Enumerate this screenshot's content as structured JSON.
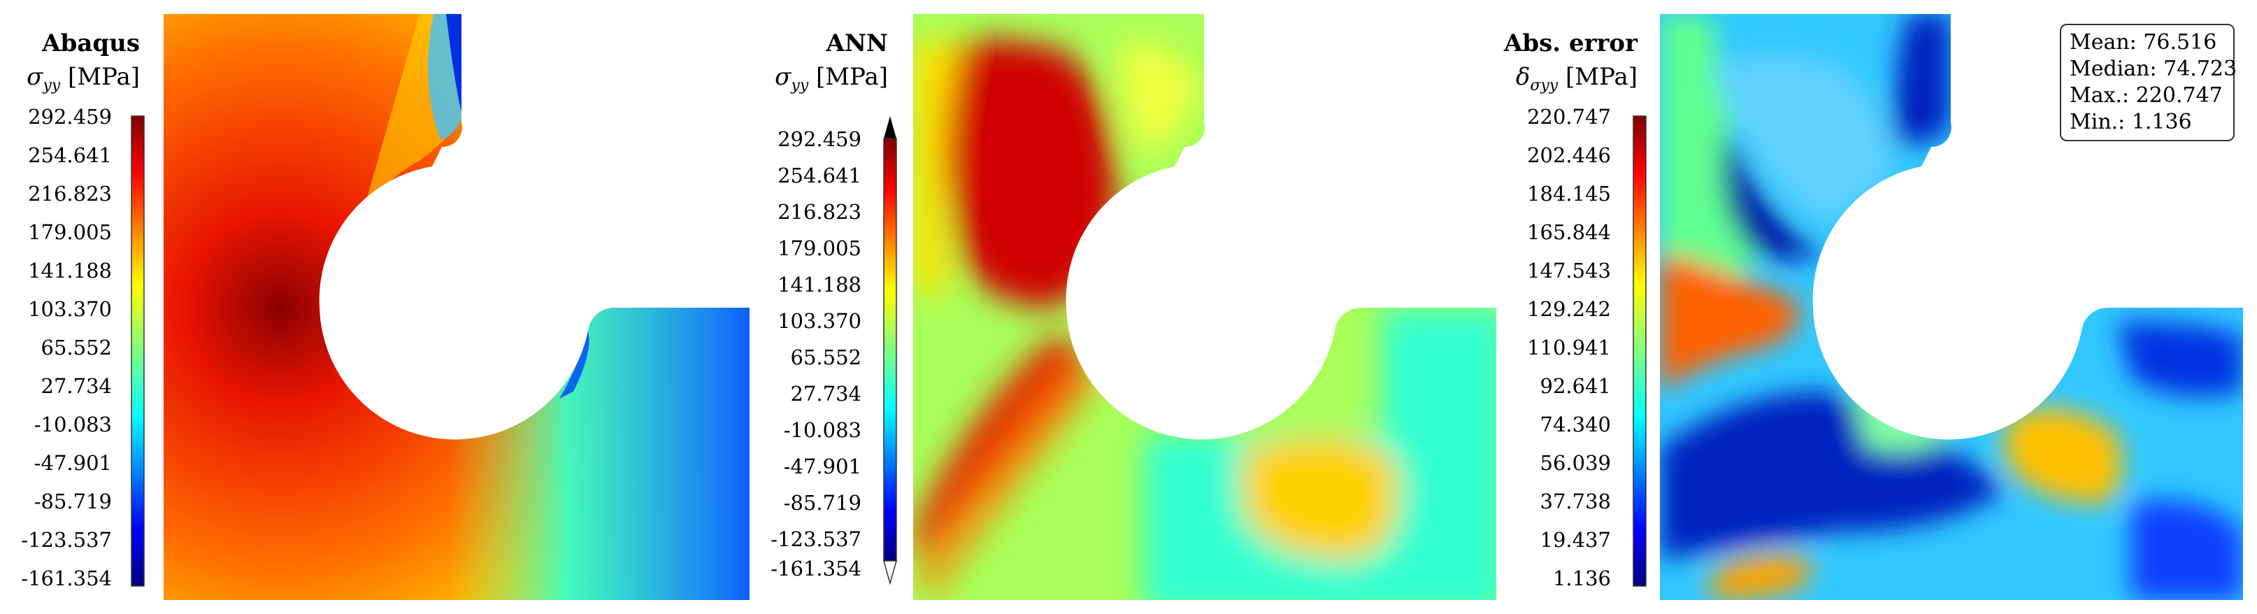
{
  "panels": [
    {
      "id": "abaqus",
      "title": "Abaqus",
      "quantity_label": "σyy [MPa]",
      "quantity_symbol": "σ",
      "quantity_subscript": "yy",
      "unit": "[MPa]",
      "colorbar_ticks": [
        "292.459",
        "254.641",
        "216.823",
        "179.005",
        "141.188",
        "103.370",
        "65.552",
        "27.734",
        "-10.083",
        "-47.901",
        "-85.719",
        "-123.537",
        "-161.354"
      ],
      "colorbar_extend": false
    },
    {
      "id": "ann",
      "title": "ANN",
      "quantity_label": "σyy [MPa]",
      "quantity_symbol": "σ",
      "quantity_subscript": "yy",
      "unit": "[MPa]",
      "colorbar_ticks": [
        "292.459",
        "254.641",
        "216.823",
        "179.005",
        "141.188",
        "103.370",
        "65.552",
        "27.734",
        "-10.083",
        "-47.901",
        "-85.719",
        "-123.537",
        "-161.354"
      ],
      "colorbar_extend": true
    },
    {
      "id": "abs-error",
      "title": "Abs. error",
      "quantity_label": "δσyy [MPa]",
      "quantity_symbol": "δ",
      "quantity_subscript": "σyy",
      "unit": "[MPa]",
      "colorbar_ticks": [
        "220.747",
        "202.446",
        "184.145",
        "165.844",
        "147.543",
        "129.242",
        "110.941",
        "92.641",
        "74.340",
        "56.039",
        "37.738",
        "19.437",
        "1.136"
      ],
      "colorbar_extend": false
    }
  ],
  "stats": {
    "mean": "Mean: 76.516",
    "median": "Median: 74.723",
    "max": "Max.: 220.747",
    "min": "Min.: 1.136"
  },
  "colors": {
    "jet_dark_red": "#7f0000",
    "jet_red": "#ff0000",
    "jet_orange": "#ff8000",
    "jet_yellow": "#ffff00",
    "jet_green": "#80ff80",
    "jet_cyan": "#00ffff",
    "jet_blue": "#0000ff",
    "jet_dark_blue": "#00007f"
  }
}
